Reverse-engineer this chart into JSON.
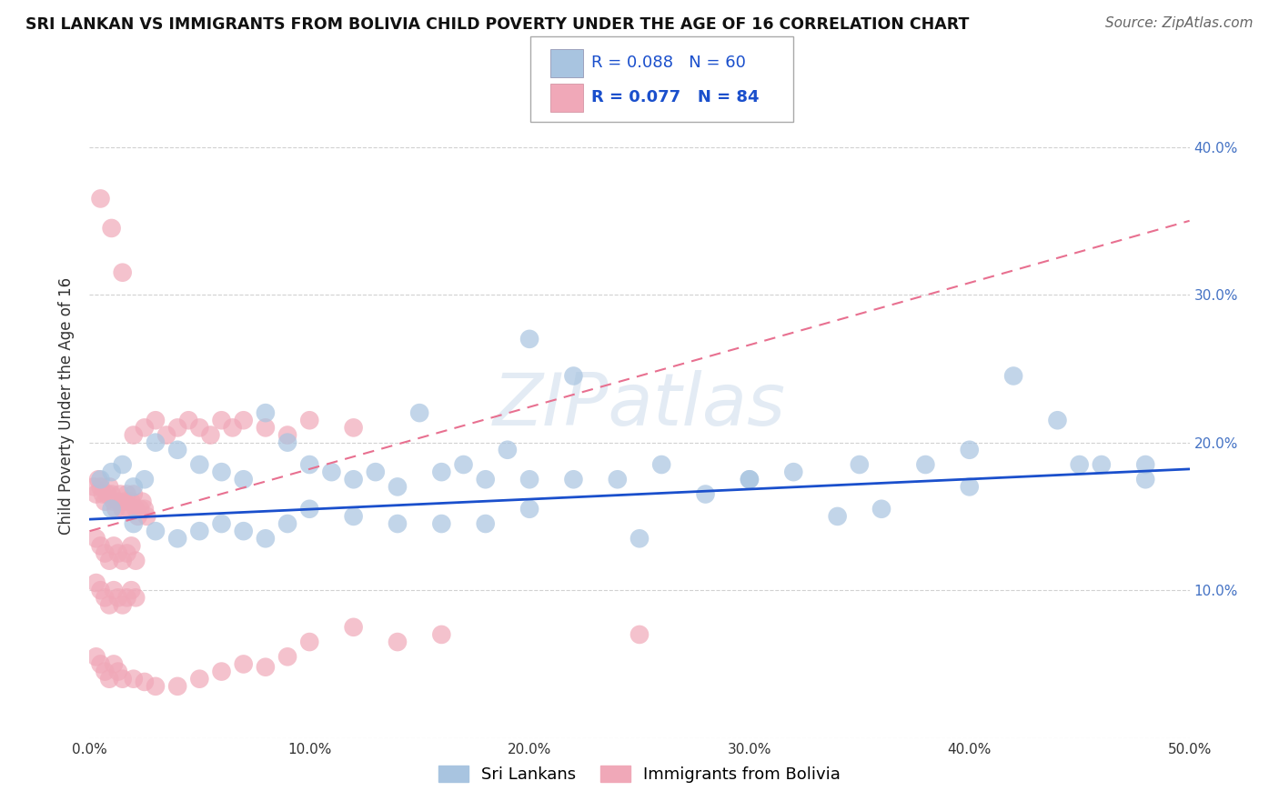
{
  "title": "SRI LANKAN VS IMMIGRANTS FROM BOLIVIA CHILD POVERTY UNDER THE AGE OF 16 CORRELATION CHART",
  "source": "Source: ZipAtlas.com",
  "ylabel": "Child Poverty Under the Age of 16",
  "xlim": [
    0.0,
    0.5
  ],
  "ylim": [
    0.0,
    0.45
  ],
  "xtick_labels": [
    "0.0%",
    "10.0%",
    "20.0%",
    "30.0%",
    "40.0%",
    "50.0%"
  ],
  "ytick_labels_right": [
    "",
    "10.0%",
    "20.0%",
    "30.0%",
    "40.0%"
  ],
  "grid_color": "#cccccc",
  "background_color": "#ffffff",
  "sri_lankan_color": "#a8c4e0",
  "bolivia_color": "#f0a8b8",
  "sri_lankan_line_color": "#1a4fcc",
  "bolivia_line_color": "#e87090",
  "legend_R_sri": "R = 0.088",
  "legend_N_sri": "N = 60",
  "legend_R_bol": "R = 0.077",
  "legend_N_bol": "N = 84",
  "watermark": "ZIPatlas",
  "sri_lankans_label": "Sri Lankans",
  "bolivia_label": "Immigrants from Bolivia",
  "sri_lankan_x": [
    0.005,
    0.01,
    0.015,
    0.02,
    0.025,
    0.03,
    0.04,
    0.05,
    0.06,
    0.07,
    0.08,
    0.09,
    0.1,
    0.11,
    0.12,
    0.13,
    0.14,
    0.15,
    0.16,
    0.17,
    0.18,
    0.19,
    0.2,
    0.22,
    0.24,
    0.26,
    0.28,
    0.3,
    0.32,
    0.34,
    0.36,
    0.38,
    0.4,
    0.42,
    0.44,
    0.46,
    0.48,
    0.01,
    0.02,
    0.03,
    0.04,
    0.05,
    0.06,
    0.07,
    0.08,
    0.09,
    0.1,
    0.12,
    0.14,
    0.16,
    0.18,
    0.2,
    0.25,
    0.3,
    0.35,
    0.4,
    0.45,
    0.2,
    0.22,
    0.48
  ],
  "sri_lankan_y": [
    0.175,
    0.18,
    0.185,
    0.17,
    0.175,
    0.2,
    0.195,
    0.185,
    0.18,
    0.175,
    0.22,
    0.2,
    0.185,
    0.18,
    0.175,
    0.18,
    0.17,
    0.22,
    0.18,
    0.185,
    0.175,
    0.195,
    0.175,
    0.175,
    0.175,
    0.185,
    0.165,
    0.175,
    0.18,
    0.15,
    0.155,
    0.185,
    0.17,
    0.245,
    0.215,
    0.185,
    0.175,
    0.155,
    0.145,
    0.14,
    0.135,
    0.14,
    0.145,
    0.14,
    0.135,
    0.145,
    0.155,
    0.15,
    0.145,
    0.145,
    0.145,
    0.155,
    0.135,
    0.175,
    0.185,
    0.195,
    0.185,
    0.27,
    0.245,
    0.185
  ],
  "bolivia_x": [
    0.002,
    0.003,
    0.004,
    0.005,
    0.006,
    0.007,
    0.008,
    0.009,
    0.01,
    0.011,
    0.012,
    0.013,
    0.014,
    0.015,
    0.016,
    0.017,
    0.018,
    0.019,
    0.02,
    0.021,
    0.022,
    0.023,
    0.024,
    0.025,
    0.026,
    0.003,
    0.005,
    0.007,
    0.009,
    0.011,
    0.013,
    0.015,
    0.017,
    0.019,
    0.021,
    0.003,
    0.005,
    0.007,
    0.009,
    0.011,
    0.013,
    0.015,
    0.017,
    0.019,
    0.021,
    0.003,
    0.005,
    0.007,
    0.009,
    0.011,
    0.013,
    0.015,
    0.02,
    0.025,
    0.03,
    0.04,
    0.05,
    0.06,
    0.07,
    0.08,
    0.09,
    0.1,
    0.12,
    0.14,
    0.16,
    0.02,
    0.025,
    0.03,
    0.035,
    0.04,
    0.045,
    0.05,
    0.055,
    0.06,
    0.065,
    0.07,
    0.08,
    0.09,
    0.1,
    0.12,
    0.005,
    0.01,
    0.015,
    0.25
  ],
  "bolivia_y": [
    0.17,
    0.165,
    0.175,
    0.17,
    0.165,
    0.16,
    0.165,
    0.17,
    0.165,
    0.16,
    0.155,
    0.16,
    0.165,
    0.155,
    0.16,
    0.165,
    0.155,
    0.16,
    0.165,
    0.155,
    0.15,
    0.155,
    0.16,
    0.155,
    0.15,
    0.135,
    0.13,
    0.125,
    0.12,
    0.13,
    0.125,
    0.12,
    0.125,
    0.13,
    0.12,
    0.105,
    0.1,
    0.095,
    0.09,
    0.1,
    0.095,
    0.09,
    0.095,
    0.1,
    0.095,
    0.055,
    0.05,
    0.045,
    0.04,
    0.05,
    0.045,
    0.04,
    0.04,
    0.038,
    0.035,
    0.035,
    0.04,
    0.045,
    0.05,
    0.048,
    0.055,
    0.065,
    0.075,
    0.065,
    0.07,
    0.205,
    0.21,
    0.215,
    0.205,
    0.21,
    0.215,
    0.21,
    0.205,
    0.215,
    0.21,
    0.215,
    0.21,
    0.205,
    0.215,
    0.21,
    0.365,
    0.345,
    0.315,
    0.07
  ]
}
